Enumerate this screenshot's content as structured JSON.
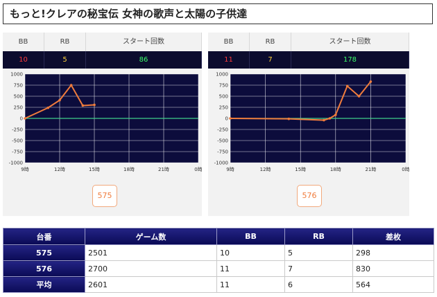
{
  "page_title": "もっと!クレアの秘宝伝 女神の歌声と太陽の子供達",
  "stats_headers": {
    "bb": "BB",
    "rb": "RB",
    "start": "スタート回数"
  },
  "machines": [
    {
      "id": "575",
      "bb": "10",
      "rb": "5",
      "start": "86"
    },
    {
      "id": "576",
      "bb": "11",
      "rb": "7",
      "start": "178"
    }
  ],
  "chart_data": [
    {
      "type": "line",
      "machine": "575",
      "x_ticks": [
        "9時",
        "12時",
        "15時",
        "18時",
        "21時",
        "0時"
      ],
      "y_ticks": [
        "1000",
        "750",
        "500",
        "250",
        "0",
        "-250",
        "-500",
        "-750",
        "-1000"
      ],
      "ylim": [
        -1000,
        1000
      ],
      "xlim": [
        9,
        24
      ],
      "series_color": "#f07c3c",
      "points": [
        [
          9,
          0
        ],
        [
          11,
          240
        ],
        [
          12,
          410
        ],
        [
          13,
          750
        ],
        [
          14,
          290
        ],
        [
          15,
          305
        ]
      ]
    },
    {
      "type": "line",
      "machine": "576",
      "x_ticks": [
        "9時",
        "12時",
        "15時",
        "18時",
        "21時",
        "0時"
      ],
      "y_ticks": [
        "1000",
        "750",
        "500",
        "250",
        "0",
        "-250",
        "-500",
        "-750",
        "-1000"
      ],
      "ylim": [
        -1000,
        1000
      ],
      "xlim": [
        9,
        24
      ],
      "series_color": "#f07c3c",
      "points": [
        [
          9,
          0
        ],
        [
          14,
          -10
        ],
        [
          17,
          -40
        ],
        [
          17.5,
          0
        ],
        [
          18,
          80
        ],
        [
          19,
          730
        ],
        [
          20,
          500
        ],
        [
          21,
          830
        ]
      ]
    }
  ],
  "summary": {
    "headers": [
      "台番",
      "ゲーム数",
      "BB",
      "RB",
      "差枚"
    ],
    "rows": [
      [
        "575",
        "2501",
        "10",
        "5",
        "298"
      ],
      [
        "576",
        "2700",
        "11",
        "7",
        "830"
      ],
      [
        "平均",
        "2601",
        "11",
        "6",
        "564"
      ]
    ]
  }
}
